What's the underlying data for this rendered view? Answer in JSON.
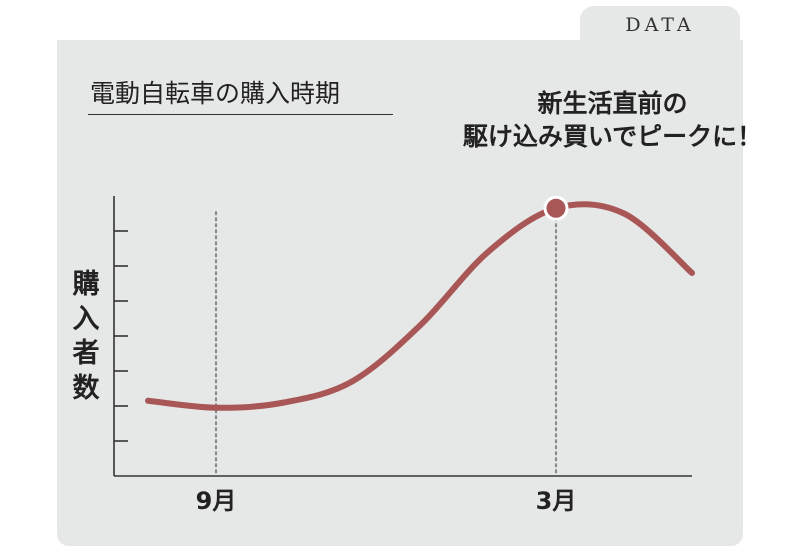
{
  "tab_label": "DATA",
  "chart_data": {
    "type": "line",
    "title": "電動自転車の購入時期",
    "ylabel": "購入者数",
    "xlabel": "",
    "categories": [
      "9月",
      "3月"
    ],
    "x_ticks": [
      "9月",
      "3月"
    ],
    "ylim": [
      0,
      8
    ],
    "grid": false,
    "series": [
      {
        "color": "#a85656",
        "points": [
          {
            "x": -1.0,
            "y": 2.15
          },
          {
            "x": 0.0,
            "y": 1.95
          },
          {
            "x": 1.0,
            "y": 2.1
          },
          {
            "x": 2.0,
            "y": 2.7
          },
          {
            "x": 3.0,
            "y": 4.3
          },
          {
            "x": 4.0,
            "y": 6.4
          },
          {
            "x": 5.0,
            "y": 7.65
          },
          {
            "x": 6.0,
            "y": 7.5
          },
          {
            "x": 7.0,
            "y": 5.8
          }
        ]
      }
    ],
    "highlight": {
      "x": 5.0,
      "y": 7.65
    },
    "annotation": [
      "新生活直前の",
      "駆け込み買いでピークに！"
    ]
  },
  "colors": {
    "panel": "#e6e7e7",
    "line": "#a85656",
    "axis": "#333333",
    "guide": "#8a8a8a"
  }
}
